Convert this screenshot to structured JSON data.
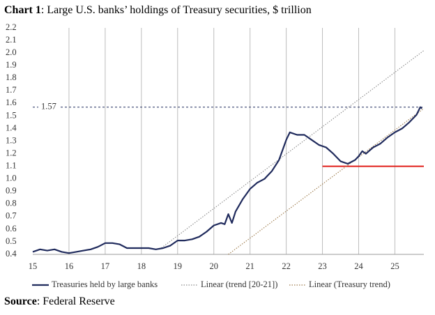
{
  "chart_data": {
    "type": "line",
    "title_label": "Chart 1",
    "title": ": Large U.S. banks’ holdings of Treasury securities, $ trillion",
    "source_label": "Source",
    "source": ": Federal Reserve",
    "xlim": [
      15,
      25.8
    ],
    "xticks": [
      15,
      16,
      17,
      18,
      19,
      20,
      21,
      22,
      23,
      24,
      25
    ],
    "ylim": [
      0.4,
      2.2
    ],
    "yticks": [
      0.4,
      0.5,
      0.6,
      0.7,
      0.8,
      0.9,
      {
        "value": 1,
        "label": "1.0"
      },
      1.1,
      1.2,
      1.3,
      1.4,
      1.5,
      1.6,
      1.7,
      1.8,
      1.9,
      {
        "value": 2,
        "label": "2.0"
      },
      2.1,
      2.2
    ],
    "grid": "x",
    "series": [
      {
        "name": "Treasuries held by large banks",
        "color": "#1f2a5c",
        "style": "solid",
        "x": [
          15.0,
          15.2,
          15.4,
          15.6,
          15.8,
          16.0,
          16.2,
          16.4,
          16.6,
          16.8,
          17.0,
          17.2,
          17.4,
          17.6,
          17.8,
          18.0,
          18.2,
          18.4,
          18.6,
          18.8,
          19.0,
          19.2,
          19.4,
          19.6,
          19.8,
          20.0,
          20.2,
          20.3,
          20.4,
          20.5,
          20.6,
          20.8,
          21.0,
          21.2,
          21.4,
          21.6,
          21.8,
          22.0,
          22.1,
          22.3,
          22.5,
          22.7,
          22.9,
          23.1,
          23.3,
          23.5,
          23.7,
          23.9,
          24.0,
          24.1,
          24.2,
          24.4,
          24.6,
          24.8,
          25.0,
          25.2,
          25.4,
          25.6,
          25.7,
          25.75
        ],
        "values": [
          0.42,
          0.44,
          0.43,
          0.44,
          0.42,
          0.41,
          0.42,
          0.43,
          0.44,
          0.46,
          0.49,
          0.49,
          0.48,
          0.45,
          0.45,
          0.45,
          0.45,
          0.44,
          0.45,
          0.47,
          0.51,
          0.51,
          0.52,
          0.54,
          0.58,
          0.63,
          0.65,
          0.64,
          0.72,
          0.65,
          0.74,
          0.84,
          0.92,
          0.97,
          1.0,
          1.06,
          1.15,
          1.31,
          1.37,
          1.35,
          1.35,
          1.31,
          1.27,
          1.25,
          1.2,
          1.14,
          1.12,
          1.15,
          1.18,
          1.22,
          1.2,
          1.25,
          1.28,
          1.33,
          1.37,
          1.4,
          1.45,
          1.51,
          1.57,
          1.56
        ]
      },
      {
        "name": "Linear (trend [20-21])",
        "color": "#8a8a8a",
        "style": "dotted",
        "x": [
          18.5,
          25.8
        ],
        "values": [
          0.44,
          2.02
        ]
      },
      {
        "name": "Linear (Treasury trend)",
        "color": "#9c7a4a",
        "style": "dotted",
        "x": [
          20.4,
          25.8
        ],
        "values": [
          0.4,
          1.56
        ]
      }
    ],
    "hlines": [
      {
        "value": 1.57,
        "label": "1.57",
        "color": "#1f2a5c",
        "style": "dashed"
      },
      {
        "value": 1.1,
        "from": 23,
        "color": "#e0201b",
        "style": "solid"
      }
    ],
    "legend": "bottom"
  }
}
